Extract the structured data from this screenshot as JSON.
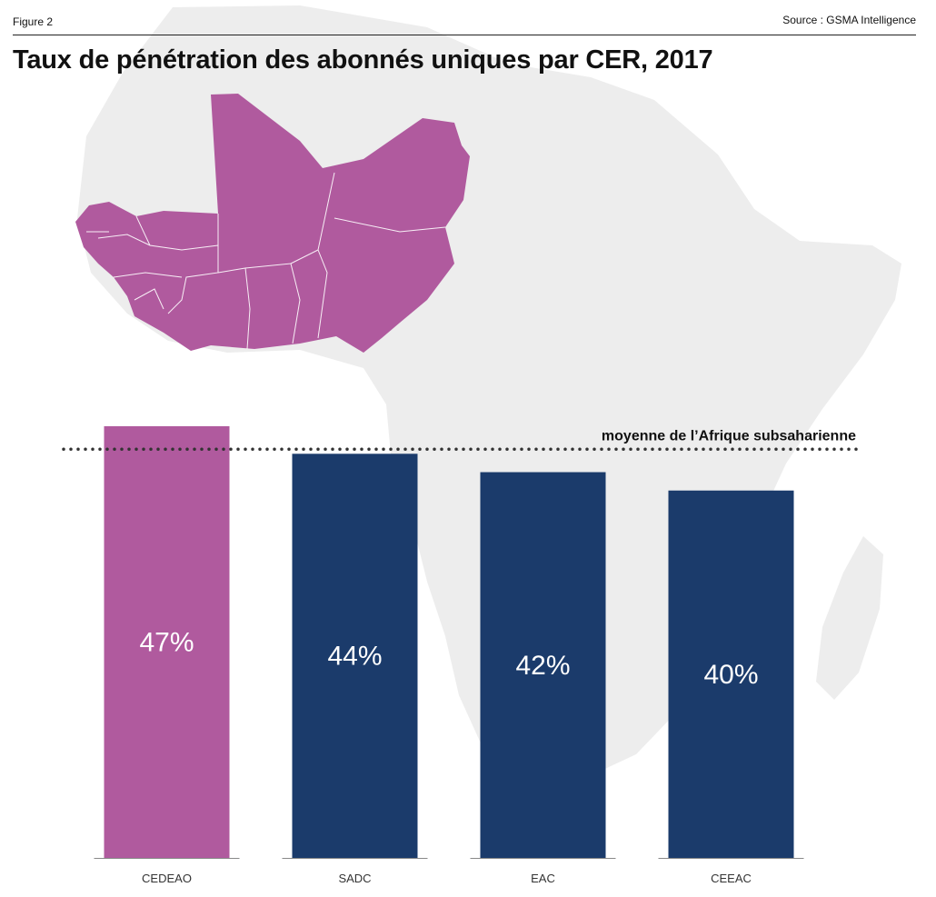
{
  "header": {
    "figure_label": "Figure 2",
    "source": "Source : GSMA Intelligence"
  },
  "title": "Taux de pénétration des abonnés uniques par CER, 2017",
  "colors": {
    "highlight": "#b05a9e",
    "default": "#1b3b6b",
    "map_land": "#ededed",
    "dotted_line": "#333333"
  },
  "chart_data": {
    "type": "bar",
    "title": "Taux de pénétration des abonnés uniques par CER, 2017",
    "categories": [
      "CEDEAO",
      "SADC",
      "EAC",
      "CEEAC"
    ],
    "values": [
      47,
      44,
      42,
      40
    ],
    "value_labels": [
      "47%",
      "44%",
      "42%",
      "40%"
    ],
    "highlight_index": 0,
    "reference_line": {
      "label": "moyenne de l’Afrique subsaharienne",
      "value": 44.5,
      "style": "dotted"
    },
    "ylim": [
      0,
      47
    ],
    "grid": false,
    "legend": "none"
  }
}
